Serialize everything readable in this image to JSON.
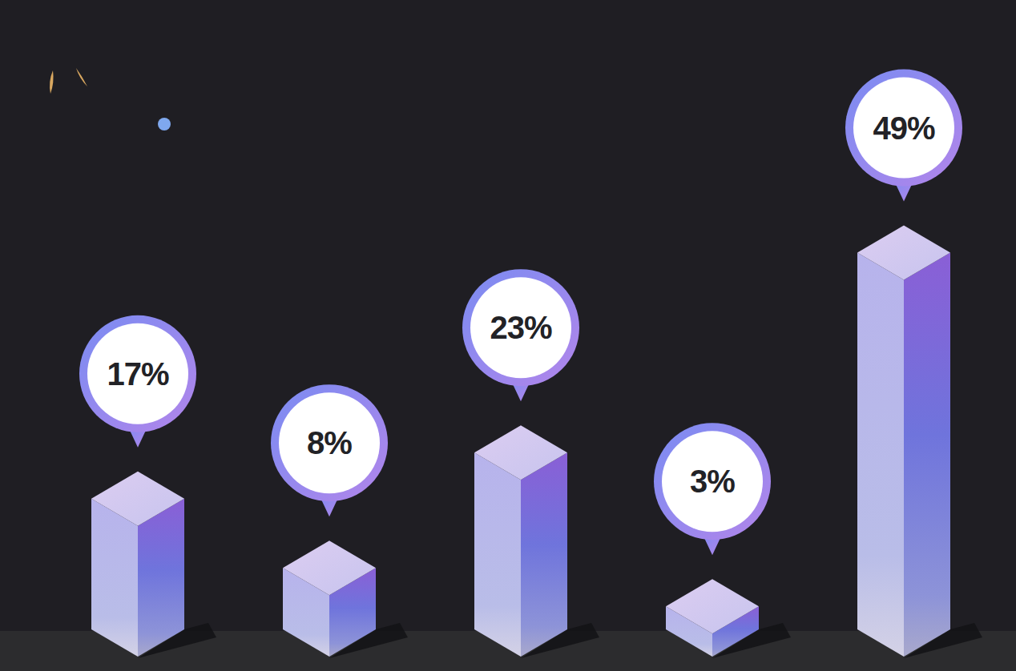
{
  "chart_data": {
    "type": "bar",
    "categories": [
      null,
      null,
      null,
      null,
      null
    ],
    "values": [
      17,
      8,
      23,
      3,
      49
    ],
    "value_labels": [
      "17%",
      "8%",
      "23%",
      "3%",
      "49%"
    ],
    "color": "#6f74dc",
    "ylim": [
      0,
      50
    ],
    "data_labels": true,
    "tick_labels": false,
    "grid": false
  }
}
